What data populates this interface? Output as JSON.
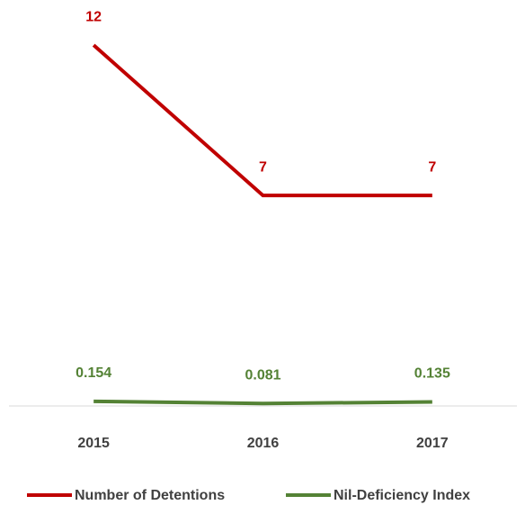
{
  "chart_data": {
    "type": "line",
    "categories": [
      "2015",
      "2016",
      "2017"
    ],
    "series": [
      {
        "name": "Number of Detentions",
        "color": "#c00000",
        "values": [
          12,
          7,
          7
        ]
      },
      {
        "name": "Nil-Deficiency Index",
        "color": "#548235",
        "values": [
          0.154,
          0.081,
          0.135
        ]
      }
    ],
    "ylim": [
      0,
      13.5
    ],
    "legend": "bottom"
  }
}
